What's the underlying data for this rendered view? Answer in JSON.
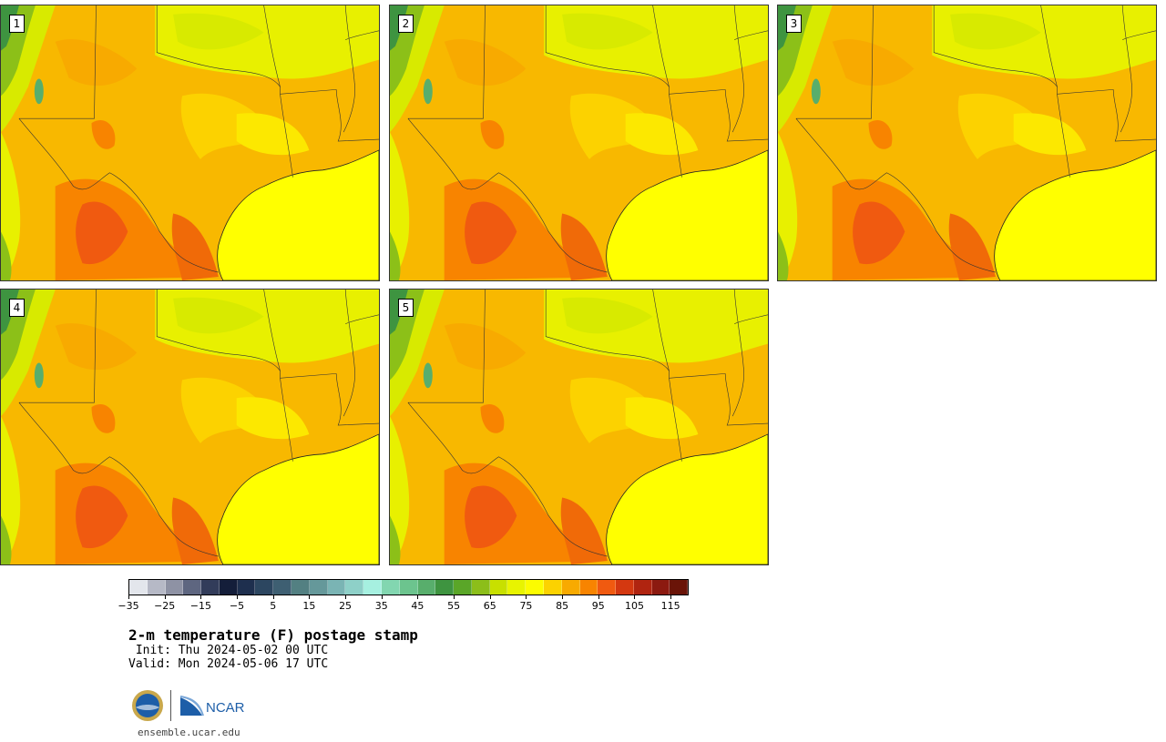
{
  "panels": [
    {
      "label": "1"
    },
    {
      "label": "2"
    },
    {
      "label": "3"
    },
    {
      "label": "4"
    },
    {
      "label": "5"
    }
  ],
  "colorbar": {
    "colors": [
      "#e3e6ec",
      "#b6b9c6",
      "#8e92a4",
      "#5e6680",
      "#323c5a",
      "#141e3a",
      "#1e2f4e",
      "#2c4660",
      "#3e5f72",
      "#538082",
      "#65989a",
      "#7ab4b4",
      "#8ed0c8",
      "#a6f0e0",
      "#82d6b0",
      "#6cc48e",
      "#58ae6c",
      "#3e9440",
      "#5aa628",
      "#8cbe1a",
      "#c8e000",
      "#e8f400",
      "#fcfc00",
      "#fcd200",
      "#f8aa00",
      "#f88400",
      "#f05a10",
      "#d43810",
      "#b02410",
      "#8c1a10",
      "#6a1408"
    ],
    "ticks": [
      "−35",
      "−25",
      "−15",
      "−5",
      "5",
      "15",
      "25",
      "35",
      "45",
      "55",
      "65",
      "75",
      "85",
      "95",
      "105",
      "115"
    ]
  },
  "title": "2-m temperature (F) postage stamp",
  "init": " Init: Thu 2024-05-02 00 UTC",
  "valid": "Valid: Mon 2024-05-06 17 UTC",
  "logos": {
    "nsf": "nsf-logo",
    "ncar": "NCAR"
  },
  "site": "ensemble.ucar.edu"
}
